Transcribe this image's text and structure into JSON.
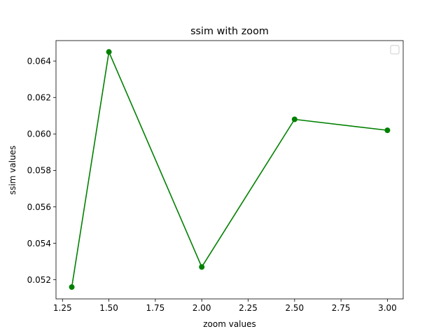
{
  "chart_data": {
    "type": "line",
    "title": "ssim with zoom",
    "xlabel": "zoom values",
    "ylabel": "ssim values",
    "xlim": [
      1.215,
      3.085
    ],
    "ylim": [
      0.05095,
      0.06512
    ],
    "xticks": [
      "1.25",
      "1.50",
      "1.75",
      "2.00",
      "2.25",
      "2.50",
      "2.75",
      "3.00"
    ],
    "yticks": [
      "0.052",
      "0.054",
      "0.056",
      "0.058",
      "0.060",
      "0.062",
      "0.064"
    ],
    "grid": false,
    "legend": {
      "placement": "top-right",
      "entries": []
    },
    "series": [
      {
        "color": "#008000",
        "marker": "circle",
        "x": [
          1.3,
          1.5,
          2.0,
          2.5,
          3.0
        ],
        "y": [
          0.0516,
          0.0645,
          0.0527,
          0.0608,
          0.0602
        ]
      }
    ]
  }
}
